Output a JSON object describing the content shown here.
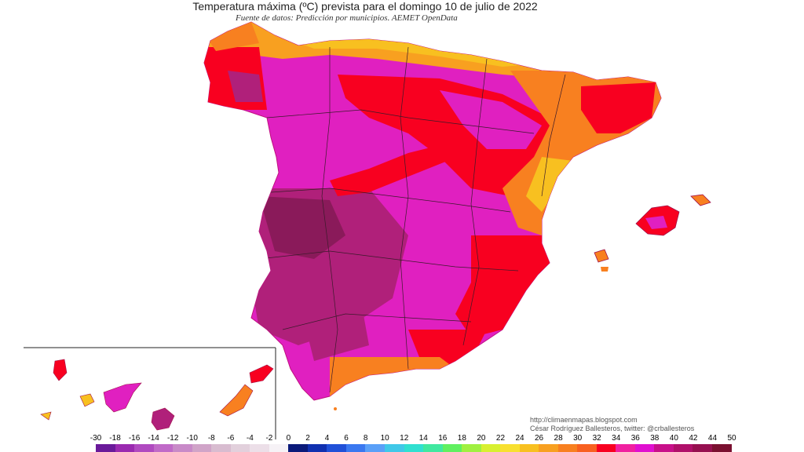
{
  "title": "Temperatura máxima (ºC) prevista para el domingo 10 de julio de 2022",
  "subtitle": "Fuente de datos: Predicción por municipios. AEMET OpenData",
  "credits": {
    "url": "http://climaenmapas.blogspot.com",
    "author": "César Rodríguez Ballesteros, twitter: @crballesteros"
  },
  "legend": {
    "ticks": [
      "-30",
      "-18",
      "-16",
      "-14",
      "-12",
      "-10",
      "-8",
      "-6",
      "-4",
      "-2",
      "0",
      "2",
      "4",
      "6",
      "8",
      "10",
      "12",
      "14",
      "16",
      "18",
      "20",
      "22",
      "24",
      "26",
      "28",
      "30",
      "32",
      "34",
      "36",
      "38",
      "40",
      "42",
      "44",
      "50"
    ],
    "colors": [
      "#6a1a9a",
      "#9a2ab0",
      "#b04ac0",
      "#c06ac8",
      "#c88ac8",
      "#d0a4c8",
      "#d8bcd0",
      "#e2d0dc",
      "#ecdfe8",
      "#f6f2f6",
      "#0a1a7a",
      "#1030b0",
      "#2050d8",
      "#3a78f0",
      "#5aa0f8",
      "#40c8e8",
      "#30e0d0",
      "#40e8a0",
      "#60f060",
      "#a0f040",
      "#d8f030",
      "#f8e030",
      "#f8c020",
      "#f8a020",
      "#f88020",
      "#f86020",
      "#f80020",
      "#f020a0",
      "#e010d0",
      "#c8108a",
      "#b0106a",
      "#961050",
      "#7a1030"
    ],
    "unit_label": "ºC"
  },
  "map": {
    "region": "Península Ibérica, Baleares y Canarias",
    "colors": {
      "extreme": "#8a1a5a",
      "very_hot": "#b0207a",
      "hot": "#e020c0",
      "warm_red": "#f80020",
      "orange": "#f88020",
      "yellow": "#f8c020",
      "green": "#a0f040"
    },
    "inset": "Islas Canarias"
  }
}
